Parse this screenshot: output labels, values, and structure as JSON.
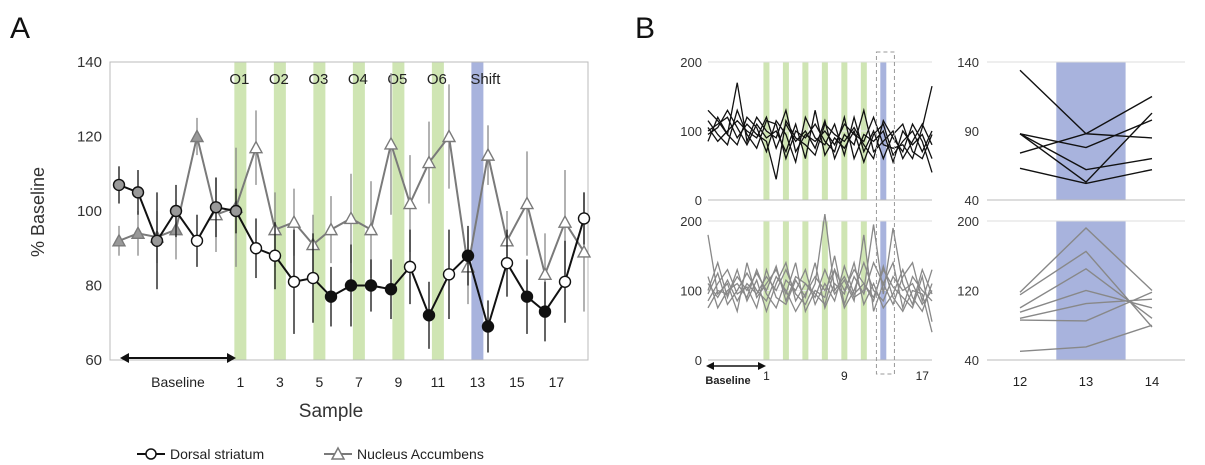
{
  "chart_data": [
    {
      "panel_label": "A",
      "type": "line",
      "ylabel": "% Baseline",
      "xlabel": "Sample",
      "ylim": [
        60,
        140
      ],
      "yticks": [
        60,
        80,
        100,
        120,
        140
      ],
      "xrange": [
        -5,
        18
      ],
      "xtick_labels": [
        {
          "x": 1,
          "label": "1"
        },
        {
          "x": 3,
          "label": "3"
        },
        {
          "x": 5,
          "label": "5"
        },
        {
          "x": 7,
          "label": "7"
        },
        {
          "x": 9,
          "label": "9"
        },
        {
          "x": 11,
          "label": "11"
        },
        {
          "x": 13,
          "label": "13"
        },
        {
          "x": 15,
          "label": "15"
        },
        {
          "x": 17,
          "label": "17"
        }
      ],
      "baseline_label": "Baseline",
      "baseline_span": [
        -4.6,
        0.7
      ],
      "bands": [
        {
          "x": 1,
          "label": "O1",
          "color": "#cfe5b3"
        },
        {
          "x": 3,
          "label": "O2",
          "color": "#cfe5b3"
        },
        {
          "x": 5,
          "label": "O3",
          "color": "#cfe5b3"
        },
        {
          "x": 7,
          "label": "O4",
          "color": "#cfe5b3"
        },
        {
          "x": 9,
          "label": "O5",
          "color": "#cfe5b3"
        },
        {
          "x": 11,
          "label": "O6",
          "color": "#cfe5b3"
        },
        {
          "x": 13,
          "label": "Shift",
          "color": "#a8b3dd"
        }
      ],
      "x": [
        -4,
        -3,
        -2,
        -1,
        0,
        1,
        2,
        3,
        4,
        5,
        6,
        7,
        8,
        9,
        10,
        11,
        12,
        13,
        14,
        15,
        16,
        17,
        18
      ],
      "series": [
        {
          "name": "Dorsal striatum",
          "color": "#111111",
          "marker": "circle",
          "values": [
            107,
            105,
            92,
            100,
            92,
            101,
            100,
            90,
            88,
            81,
            82,
            77,
            80,
            80,
            79,
            85,
            72,
            83,
            88,
            69,
            86,
            77,
            73,
            81,
            98
          ],
          "x": [
            -5,
            -4,
            -3,
            -2,
            -1,
            0,
            0.9,
            1,
            2,
            3,
            4,
            5,
            6,
            7,
            8,
            9,
            10,
            11,
            12,
            13,
            14,
            15,
            16,
            17,
            18
          ],
          "error": [
            5,
            6,
            13,
            7,
            7,
            8,
            6,
            8,
            9,
            14,
            12,
            8,
            11,
            7,
            8,
            10,
            9,
            12,
            8,
            7,
            9,
            10,
            8,
            11,
            7
          ],
          "filled_from": 5
        },
        {
          "name": "Nucleus Accumbens",
          "color": "#7a7a7a",
          "marker": "triangle",
          "values": [
            92,
            94,
            93,
            95,
            120,
            99,
            101,
            100,
            117,
            95,
            97,
            91,
            95,
            98,
            95,
            118,
            102,
            113,
            120,
            85,
            115,
            92,
            102,
            83,
            97,
            89
          ],
          "x": [
            -5,
            -4,
            -3,
            -2,
            -1,
            0,
            0.9,
            1,
            1.0,
            2,
            3,
            4,
            5,
            6,
            7,
            8,
            9,
            10,
            11,
            12,
            13,
            14,
            15,
            16,
            17,
            18
          ],
          "error": [
            4,
            6,
            7,
            8,
            5,
            10,
            16,
            7,
            10,
            10,
            9,
            8,
            9,
            12,
            13,
            19,
            13,
            11,
            14,
            10,
            8,
            8,
            14,
            11,
            14,
            16
          ]
        }
      ]
    },
    {
      "panel_label": "B",
      "type": "line",
      "subpanels": [
        {
          "name": "top-left",
          "ylim": [
            0,
            200
          ],
          "yticks": [
            0,
            100,
            200
          ],
          "xrange": [
            -5,
            18
          ],
          "color": "#111111",
          "bands": [
            1,
            2,
            3,
            4,
            5,
            6,
            7,
            8,
            9,
            10,
            11
          ],
          "shift_band": 13,
          "lines": [
            [
              130,
              115,
              95,
              170,
              85,
              120,
              100,
              90,
              130,
              70,
              95,
              85,
              100,
              80,
              110,
              95,
              85,
              120,
              80,
              75,
              80,
              60,
              105,
              165
            ],
            [
              95,
              105,
              130,
              105,
              80,
              110,
              90,
              100,
              70,
              110,
              60,
              130,
              65,
              90,
              75,
              100,
              55,
              95,
              110,
              65,
              85,
              100,
              70,
              100
            ],
            [
              105,
              85,
              100,
              115,
              100,
              90,
              120,
              75,
              110,
              85,
              100,
              75,
              115,
              60,
              95,
              80,
              130,
              70,
              85,
              100,
              60,
              85,
              110,
              80
            ],
            [
              85,
              120,
              95,
              80,
              120,
              105,
              70,
              115,
              95,
              55,
              120,
              90,
              80,
              110,
              65,
              120,
              70,
              100,
              60,
              95,
              110,
              70,
              60,
              95
            ],
            [
              115,
              95,
              80,
              130,
              95,
              75,
              115,
              110,
              60,
              100,
              90,
              110,
              85,
              70,
              120,
              60,
              95,
              85,
              100,
              55,
              100,
              80,
              95,
              60
            ],
            [
              100,
              110,
              120,
              90,
              110,
              95,
              85,
              30,
              115,
              90,
              80,
              65,
              110,
              95,
              85,
              105,
              80,
              60,
              115,
              90,
              70,
              110,
              85,
              40
            ]
          ]
        },
        {
          "name": "bottom-left",
          "ylim": [
            0,
            200
          ],
          "yticks": [
            0,
            100,
            200
          ],
          "xrange": [
            -5,
            18
          ],
          "xtick_labels": [
            {
              "x": 1,
              "label": "1"
            },
            {
              "x": 9,
              "label": "9"
            },
            {
              "x": 17,
              "label": "17"
            }
          ],
          "baseline_label": "Baseline",
          "color": "#888888",
          "bands": [
            1,
            2,
            3,
            4,
            5,
            6,
            7,
            8,
            9,
            10,
            11
          ],
          "shift_band": 13,
          "lines": [
            [
              180,
              95,
              110,
              70,
              140,
              90,
              110,
              130,
              95,
              140,
              70,
              100,
              90,
              150,
              80,
              120,
              95,
              140,
              110,
              80,
              120,
              140,
              85,
              130
            ],
            [
              100,
              140,
              90,
              130,
              85,
              115,
              70,
              110,
              140,
              85,
              110,
              90,
              130,
              95,
              115,
              85,
              180,
              70,
              110,
              140,
              75,
              120,
              100,
              85
            ],
            [
              85,
              110,
              130,
              95,
              105,
              75,
              130,
              90,
              80,
              115,
              90,
              140,
              75,
              110,
              95,
              140,
              80,
              110,
              75,
              95,
              130,
              90,
              70,
              110
            ],
            [
              120,
              75,
              100,
              110,
              90,
              130,
              95,
              75,
              115,
              100,
              130,
              80,
              110,
              85,
              135,
              95,
              110,
              90,
              130,
              105,
              90,
              75,
              120,
              55
            ],
            [
              95,
              125,
              80,
              100,
              125,
              100,
              85,
              120,
              100,
              70,
              95,
              120,
              100,
              130,
              75,
              100,
              140,
              100,
              85,
              120,
              100,
              110,
              80,
              100
            ],
            [
              110,
              90,
              115,
              85,
              110,
              95,
              120,
              100,
              130,
              95,
              80,
              110,
              210,
              100,
              120,
              90,
              100,
              195,
              95,
              190,
              110,
              80,
              130,
              95
            ],
            [
              75,
              100,
              95,
              120,
              100,
              125,
              100,
              135,
              85,
              120,
              110,
              95,
              80,
              130,
              100,
              130,
              110,
              85,
              135,
              90,
              70,
              100,
              95,
              40
            ]
          ]
        },
        {
          "name": "top-right",
          "ylim": [
            40,
            140
          ],
          "yticks": [
            40,
            90,
            140
          ],
          "x": [
            12,
            13,
            14
          ],
          "color": "#111111",
          "shift_band": 13,
          "lines": [
            [
              134,
              88,
              115
            ],
            [
              88,
              53,
              103
            ],
            [
              88,
              78,
              98
            ],
            [
              74,
              88,
              85
            ],
            [
              63,
              52,
              62
            ],
            [
              88,
              62,
              70
            ]
          ]
        },
        {
          "name": "bottom-right",
          "ylim": [
            40,
            200
          ],
          "yticks": [
            40,
            120,
            200
          ],
          "x": [
            12,
            13,
            14
          ],
          "xtick_labels": [
            {
              "x": 12,
              "label": "12"
            },
            {
              "x": 13,
              "label": "13"
            },
            {
              "x": 14,
              "label": "14"
            }
          ],
          "color": "#888888",
          "shift_band": 13,
          "lines": [
            [
              118,
              192,
              120
            ],
            [
              115,
              165,
              78
            ],
            [
              100,
              145,
              88
            ],
            [
              95,
              120,
              100
            ],
            [
              88,
              105,
              110
            ],
            [
              86,
              85,
              118
            ],
            [
              50,
              55,
              80
            ]
          ]
        }
      ]
    }
  ],
  "legend": [
    {
      "label": "Dorsal striatum",
      "marker": "circle",
      "color": "#111111"
    },
    {
      "label": "Nucleus Accumbens",
      "marker": "triangle",
      "color": "#7a7a7a"
    }
  ]
}
